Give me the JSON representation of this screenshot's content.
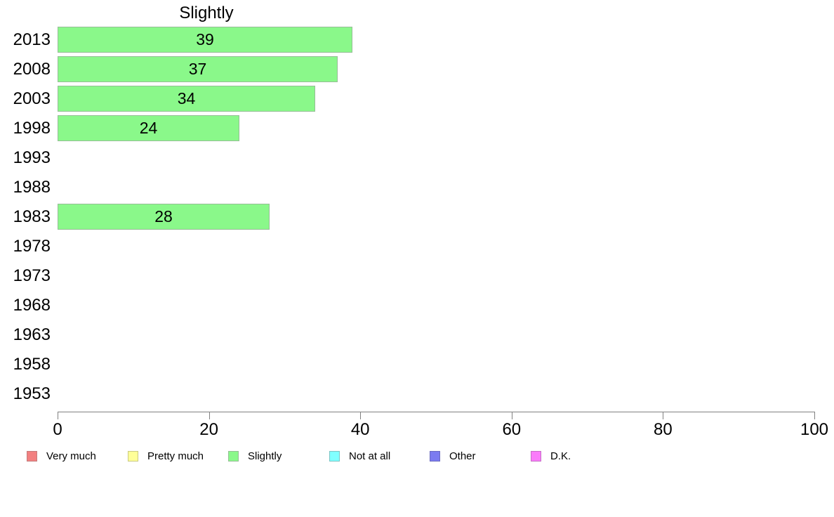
{
  "chart_data": {
    "type": "bar",
    "orientation": "horizontal",
    "title": "Slightly",
    "categories": [
      "2013",
      "2008",
      "2003",
      "1998",
      "1993",
      "1988",
      "1983",
      "1978",
      "1973",
      "1968",
      "1963",
      "1958",
      "1953"
    ],
    "values": [
      39,
      37,
      34,
      24,
      null,
      null,
      28,
      null,
      null,
      null,
      null,
      null,
      null
    ],
    "value_labels": [
      "39",
      "37",
      "34",
      "24",
      "",
      "",
      "28",
      "",
      "",
      "",
      "",
      "",
      ""
    ],
    "xlim": [
      0,
      100
    ],
    "x_ticks": [
      0,
      20,
      40,
      60,
      80,
      100
    ],
    "x_tick_labels": [
      "0",
      "20",
      "40",
      "60",
      "80",
      "100"
    ],
    "grid": false,
    "legend_position": "bottom",
    "bar_fill_color": "#8af88a",
    "bar_border_color": "#96be96",
    "axis_color": "#808080",
    "text_color": "#000000",
    "legend": [
      {
        "label": "Very much",
        "color": "#f28080",
        "border": "#c47c7c"
      },
      {
        "label": "Pretty much",
        "color": "#ffff99",
        "border": "#c9c983"
      },
      {
        "label": "Slightly",
        "color": "#8af88a",
        "border": "#96be96"
      },
      {
        "label": "Not at all",
        "color": "#80ffff",
        "border": "#7cc4c4"
      },
      {
        "label": "Other",
        "color": "#7b7bf0",
        "border": "#6a6ac0"
      },
      {
        "label": "D.K.",
        "color": "#fa7bfa",
        "border": "#c66fc6"
      }
    ]
  }
}
